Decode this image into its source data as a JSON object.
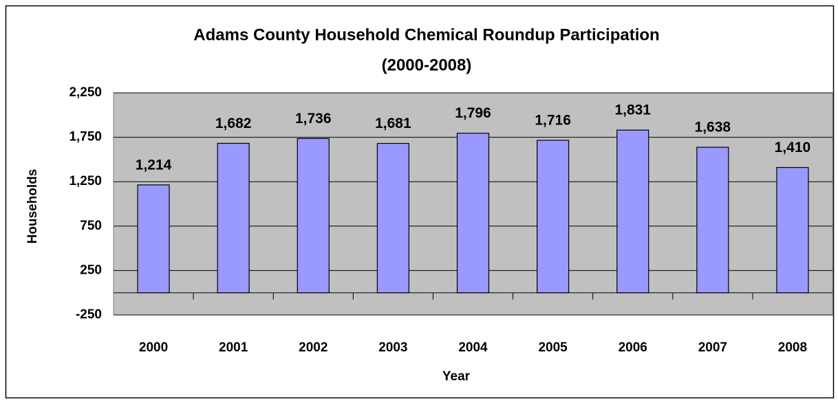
{
  "chart_data": {
    "type": "bar",
    "title": [
      "Adams County Household Chemical Roundup Participation",
      "(2000-2008)"
    ],
    "x_label": "Year",
    "y_label": "Households",
    "categories": [
      "2000",
      "2001",
      "2002",
      "2003",
      "2004",
      "2005",
      "2006",
      "2007",
      "2008"
    ],
    "values": [
      1214,
      1682,
      1736,
      1681,
      1796,
      1716,
      1831,
      1638,
      1410
    ],
    "value_labels": [
      "1,214",
      "1,682",
      "1,736",
      "1,681",
      "1,796",
      "1,716",
      "1,831",
      "1,638",
      "1,410"
    ],
    "color": "#9999ff",
    "ylim": [
      -250,
      2250
    ],
    "yticks": [
      -250,
      250,
      750,
      {
        "value": 1250,
        "label": "1,250"
      },
      {
        "value": 1750,
        "label": "1,750"
      },
      {
        "value": 2250,
        "label": "2,250"
      }
    ],
    "grid": true
  }
}
